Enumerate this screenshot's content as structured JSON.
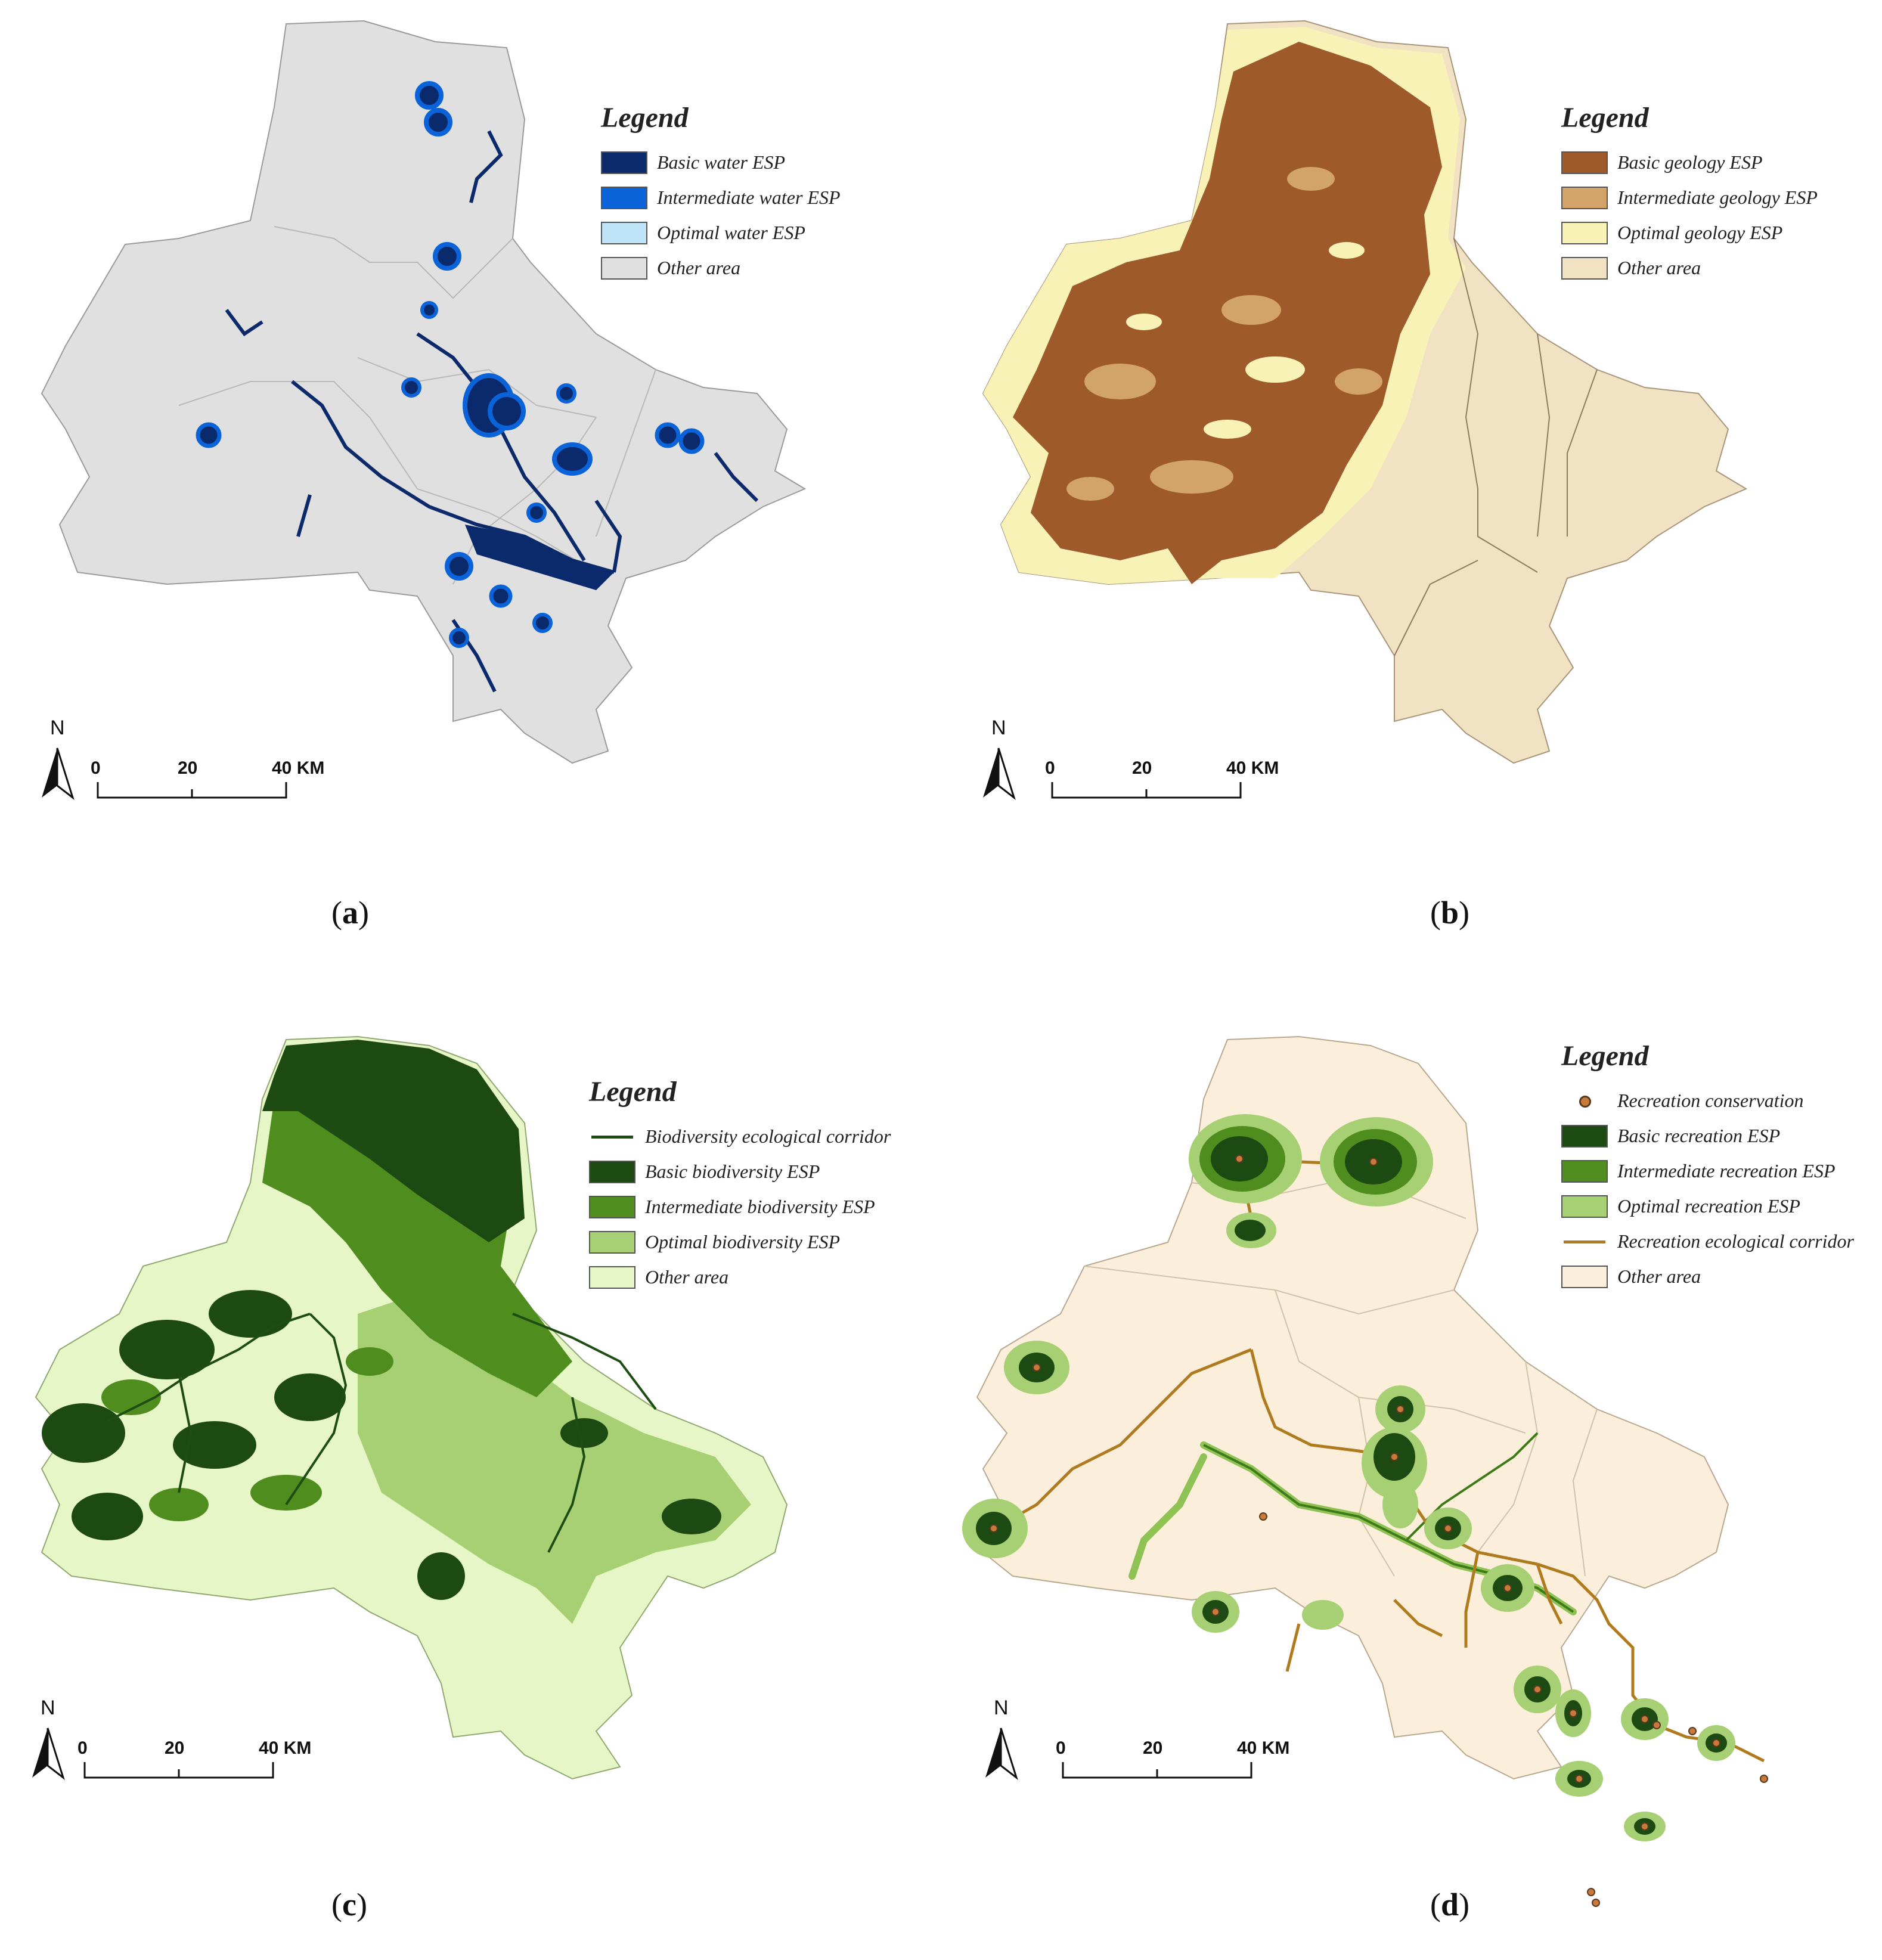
{
  "panels": [
    {
      "id": "a",
      "caption_letter": "a",
      "legend_title": "Legend",
      "legend_items": [
        {
          "label": "Basic water ESP",
          "color": "#0b2a6b",
          "kind": "box"
        },
        {
          "label": "Intermediate water ESP",
          "color": "#0a63d8",
          "kind": "box"
        },
        {
          "label": "Optimal water ESP",
          "color": "#bfe3f7",
          "kind": "box"
        },
        {
          "label": "Other area",
          "color": "#e0e0e0",
          "kind": "box"
        }
      ],
      "north_label": "N",
      "scale_ticks": [
        "0",
        "20",
        "40 KM"
      ]
    },
    {
      "id": "b",
      "caption_letter": "b",
      "legend_title": "Legend",
      "legend_items": [
        {
          "label": "Basic geology ESP",
          "color": "#9e5a2a",
          "kind": "box"
        },
        {
          "label": "Intermediate geology ESP",
          "color": "#d2a46a",
          "kind": "box"
        },
        {
          "label": "Optimal geology ESP",
          "color": "#f8f2b6",
          "kind": "box"
        },
        {
          "label": "Other area",
          "color": "#f0e2c2",
          "kind": "box"
        }
      ],
      "north_label": "N",
      "scale_ticks": [
        "0",
        "20",
        "40 KM"
      ]
    },
    {
      "id": "c",
      "caption_letter": "c",
      "legend_title": "Legend",
      "legend_items": [
        {
          "label": "Biodiversity ecological corridor",
          "color": "#1e4d14",
          "kind": "line"
        },
        {
          "label": "Basic biodiversity ESP",
          "color": "#1d4a12",
          "kind": "box"
        },
        {
          "label": "Intermediate biodiversity ESP",
          "color": "#4f8d1e",
          "kind": "box"
        },
        {
          "label": "Optimal biodiversity ESP",
          "color": "#a7cf74",
          "kind": "box"
        },
        {
          "label": "Other area",
          "color": "#e7f6c6",
          "kind": "box"
        }
      ],
      "north_label": "N",
      "scale_ticks": [
        "0",
        "20",
        "40 KM"
      ]
    },
    {
      "id": "d",
      "caption_letter": "d",
      "legend_title": "Legend",
      "legend_items": [
        {
          "label": "Recreation conservation",
          "color": "#c87a3c",
          "kind": "point"
        },
        {
          "label": "Basic recreation ESP",
          "color": "#1d4a12",
          "kind": "box"
        },
        {
          "label": "Intermediate recreation ESP",
          "color": "#4f8d1e",
          "kind": "box"
        },
        {
          "label": "Optimal recreation ESP",
          "color": "#a7cf74",
          "kind": "box"
        },
        {
          "label": "Recreation ecological corridor",
          "color": "#b07a1e",
          "kind": "line"
        },
        {
          "label": "Other area",
          "color": "#fbeedb",
          "kind": "box"
        }
      ],
      "north_label": "N",
      "scale_ticks": [
        "0",
        "20",
        "40 KM"
      ]
    }
  ]
}
